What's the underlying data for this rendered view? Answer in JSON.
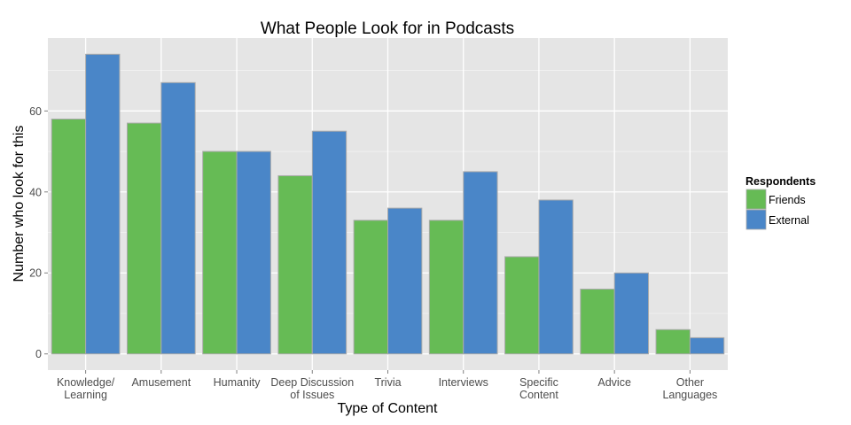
{
  "chart_data": {
    "type": "bar",
    "title": "What People Look for in Podcasts",
    "xlabel": "Type of Content",
    "ylabel": "Number who look for this",
    "categories": [
      [
        "Knowledge/",
        "Learning"
      ],
      [
        "Amusement"
      ],
      [
        "Humanity"
      ],
      [
        "Deep Discussion",
        "of Issues"
      ],
      [
        "Trivia"
      ],
      [
        "Interviews"
      ],
      [
        "Specific",
        "Content"
      ],
      [
        "Advice"
      ],
      [
        "Other",
        "Languages"
      ]
    ],
    "series": [
      {
        "name": "Friends",
        "color": "#66bb55",
        "values": [
          58,
          57,
          50,
          44,
          33,
          33,
          24,
          16,
          6
        ]
      },
      {
        "name": "External",
        "color": "#4a86c8",
        "values": [
          74,
          67,
          50,
          55,
          36,
          45,
          38,
          20,
          4
        ]
      }
    ],
    "ylim": [
      -4,
      78
    ],
    "yticks": [
      0,
      20,
      40,
      60
    ],
    "grid": true,
    "legend": {
      "title": "Respondents",
      "position": "right"
    },
    "colors": {
      "panel": "#e5e5e5",
      "grid_major": "#ffffff",
      "grid_minor": "#f2f2f2",
      "bar_outline": "#aaaaaa"
    }
  }
}
